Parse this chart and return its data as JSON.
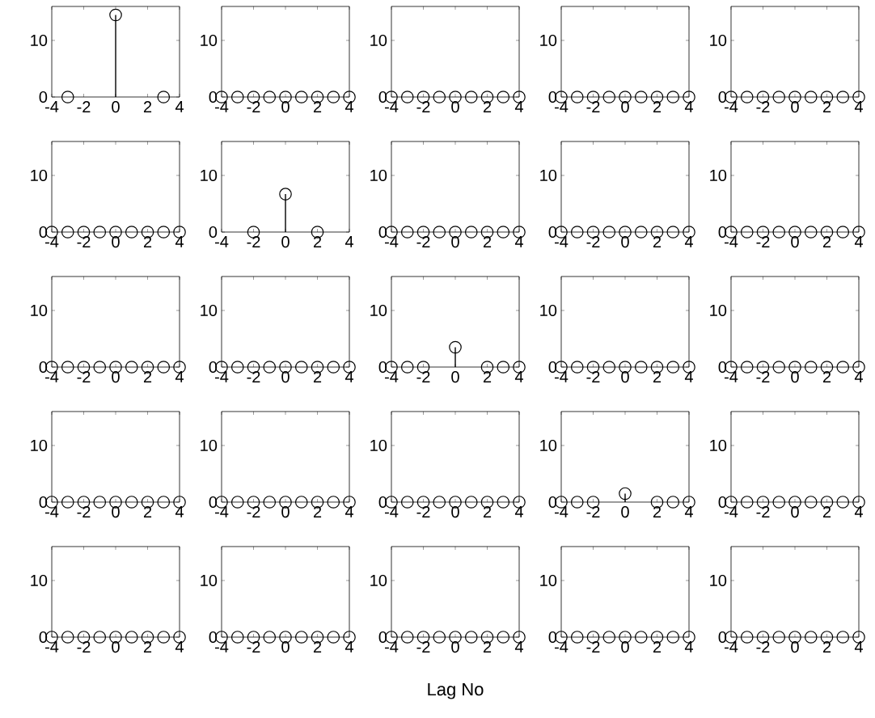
{
  "chart_data": [
    {
      "type": "lollipop",
      "x": [
        -3,
        0,
        3
      ],
      "values": [
        0,
        14.5,
        0
      ],
      "color": "#000000",
      "marker": "circle",
      "xlim": [
        -4,
        4
      ],
      "ylim": [
        0,
        16
      ],
      "xticks": [
        -4,
        -2,
        0,
        2,
        4
      ],
      "yticks": [
        0,
        10
      ]
    },
    {
      "type": "lollipop",
      "x": [
        -4,
        -3,
        -2,
        -1,
        0,
        1,
        2,
        3,
        4
      ],
      "values": [
        0,
        0,
        0,
        0,
        0,
        0,
        0,
        0,
        0
      ],
      "color": "#000000",
      "marker": "circle",
      "xlim": [
        -4,
        4
      ],
      "ylim": [
        0,
        16
      ],
      "xticks": [
        -4,
        -2,
        0,
        2,
        4
      ],
      "yticks": [
        0,
        10
      ]
    },
    {
      "type": "lollipop",
      "x": [
        -4,
        -3,
        -2,
        -1,
        0,
        1,
        2,
        3,
        4
      ],
      "values": [
        0,
        0,
        0,
        0,
        0,
        0,
        0,
        0,
        0
      ],
      "color": "#000000",
      "marker": "circle",
      "xlim": [
        -4,
        4
      ],
      "ylim": [
        0,
        16
      ],
      "xticks": [
        -4,
        -2,
        0,
        2,
        4
      ],
      "yticks": [
        0,
        10
      ]
    },
    {
      "type": "lollipop",
      "x": [
        -4,
        -3,
        -2,
        -1,
        0,
        1,
        2,
        3,
        4
      ],
      "values": [
        0,
        0,
        0,
        0,
        0,
        0,
        0,
        0,
        0
      ],
      "color": "#000000",
      "marker": "circle",
      "xlim": [
        -4,
        4
      ],
      "ylim": [
        0,
        16
      ],
      "xticks": [
        -4,
        -2,
        0,
        2,
        4
      ],
      "yticks": [
        0,
        10
      ]
    },
    {
      "type": "lollipop",
      "x": [
        -4,
        -3,
        -2,
        -1,
        0,
        1,
        2,
        3,
        4
      ],
      "values": [
        0,
        0,
        0,
        0,
        0,
        0,
        0,
        0,
        0
      ],
      "color": "#000000",
      "marker": "circle",
      "xlim": [
        -4,
        4
      ],
      "ylim": [
        0,
        16
      ],
      "xticks": [
        -4,
        -2,
        0,
        2,
        4
      ],
      "yticks": [
        0,
        10
      ]
    },
    {
      "type": "lollipop",
      "x": [
        -4,
        -3,
        -2,
        -1,
        0,
        1,
        2,
        3,
        4
      ],
      "values": [
        0,
        0,
        0,
        0,
        0,
        0,
        0,
        0,
        0
      ],
      "color": "#000000",
      "marker": "circle",
      "xlim": [
        -4,
        4
      ],
      "ylim": [
        0,
        16
      ],
      "xticks": [
        -4,
        -2,
        0,
        2,
        4
      ],
      "yticks": [
        0,
        10
      ]
    },
    {
      "type": "lollipop",
      "x": [
        -2,
        0,
        2
      ],
      "values": [
        0,
        6.7,
        0
      ],
      "color": "#000000",
      "marker": "circle",
      "xlim": [
        -4,
        4
      ],
      "ylim": [
        0,
        16
      ],
      "xticks": [
        -4,
        -2,
        0,
        2,
        4
      ],
      "yticks": [
        0,
        10
      ]
    },
    {
      "type": "lollipop",
      "x": [
        -4,
        -3,
        -2,
        -1,
        0,
        1,
        2,
        3,
        4
      ],
      "values": [
        0,
        0,
        0,
        0,
        0,
        0,
        0,
        0,
        0
      ],
      "color": "#000000",
      "marker": "circle",
      "xlim": [
        -4,
        4
      ],
      "ylim": [
        0,
        16
      ],
      "xticks": [
        -4,
        -2,
        0,
        2,
        4
      ],
      "yticks": [
        0,
        10
      ]
    },
    {
      "type": "lollipop",
      "x": [
        -4,
        -3,
        -2,
        -1,
        0,
        1,
        2,
        3,
        4
      ],
      "values": [
        0,
        0,
        0,
        0,
        0,
        0,
        0,
        0,
        0
      ],
      "color": "#000000",
      "marker": "circle",
      "xlim": [
        -4,
        4
      ],
      "ylim": [
        0,
        16
      ],
      "xticks": [
        -4,
        -2,
        0,
        2,
        4
      ],
      "yticks": [
        0,
        10
      ]
    },
    {
      "type": "lollipop",
      "x": [
        -4,
        -3,
        -2,
        -1,
        0,
        1,
        2,
        3,
        4
      ],
      "values": [
        0,
        0,
        0,
        0,
        0,
        0,
        0,
        0,
        0
      ],
      "color": "#000000",
      "marker": "circle",
      "xlim": [
        -4,
        4
      ],
      "ylim": [
        0,
        16
      ],
      "xticks": [
        -4,
        -2,
        0,
        2,
        4
      ],
      "yticks": [
        0,
        10
      ]
    },
    {
      "type": "lollipop",
      "x": [
        -4,
        -3,
        -2,
        -1,
        0,
        1,
        2,
        3,
        4
      ],
      "values": [
        0,
        0,
        0,
        0,
        0,
        0,
        0,
        0,
        0
      ],
      "color": "#000000",
      "marker": "circle",
      "xlim": [
        -4,
        4
      ],
      "ylim": [
        0,
        16
      ],
      "xticks": [
        -4,
        -2,
        0,
        2,
        4
      ],
      "yticks": [
        0,
        10
      ]
    },
    {
      "type": "lollipop",
      "x": [
        -4,
        -3,
        -2,
        -1,
        0,
        1,
        2,
        3,
        4
      ],
      "values": [
        0,
        0,
        0,
        0,
        0,
        0,
        0,
        0,
        0
      ],
      "color": "#000000",
      "marker": "circle",
      "xlim": [
        -4,
        4
      ],
      "ylim": [
        0,
        16
      ],
      "xticks": [
        -4,
        -2,
        0,
        2,
        4
      ],
      "yticks": [
        0,
        10
      ]
    },
    {
      "type": "lollipop",
      "x": [
        -4,
        -3,
        -2,
        0,
        2,
        3,
        4
      ],
      "values": [
        0,
        0,
        0,
        3.5,
        0,
        0,
        0
      ],
      "color": "#000000",
      "marker": "circle",
      "xlim": [
        -4,
        4
      ],
      "ylim": [
        0,
        16
      ],
      "xticks": [
        -4,
        -2,
        0,
        2,
        4
      ],
      "yticks": [
        0,
        10
      ]
    },
    {
      "type": "lollipop",
      "x": [
        -4,
        -3,
        -2,
        -1,
        0,
        1,
        2,
        3,
        4
      ],
      "values": [
        0,
        0,
        0,
        0,
        0,
        0,
        0,
        0,
        0
      ],
      "color": "#000000",
      "marker": "circle",
      "xlim": [
        -4,
        4
      ],
      "ylim": [
        0,
        16
      ],
      "xticks": [
        -4,
        -2,
        0,
        2,
        4
      ],
      "yticks": [
        0,
        10
      ]
    },
    {
      "type": "lollipop",
      "x": [
        -4,
        -3,
        -2,
        -1,
        0,
        1,
        2,
        3,
        4
      ],
      "values": [
        0,
        0,
        0,
        0,
        0,
        0,
        0,
        0,
        0
      ],
      "color": "#000000",
      "marker": "circle",
      "xlim": [
        -4,
        4
      ],
      "ylim": [
        0,
        16
      ],
      "xticks": [
        -4,
        -2,
        0,
        2,
        4
      ],
      "yticks": [
        0,
        10
      ]
    },
    {
      "type": "lollipop",
      "x": [
        -4,
        -3,
        -2,
        -1,
        0,
        1,
        2,
        3,
        4
      ],
      "values": [
        0,
        0,
        0,
        0,
        0,
        0,
        0,
        0,
        0
      ],
      "color": "#000000",
      "marker": "circle",
      "xlim": [
        -4,
        4
      ],
      "ylim": [
        0,
        16
      ],
      "xticks": [
        -4,
        -2,
        0,
        2,
        4
      ],
      "yticks": [
        0,
        10
      ]
    },
    {
      "type": "lollipop",
      "x": [
        -4,
        -3,
        -2,
        -1,
        0,
        1,
        2,
        3,
        4
      ],
      "values": [
        0,
        0,
        0,
        0,
        0,
        0,
        0,
        0,
        0
      ],
      "color": "#000000",
      "marker": "circle",
      "xlim": [
        -4,
        4
      ],
      "ylim": [
        0,
        16
      ],
      "xticks": [
        -4,
        -2,
        0,
        2,
        4
      ],
      "yticks": [
        0,
        10
      ]
    },
    {
      "type": "lollipop",
      "x": [
        -4,
        -3,
        -2,
        -1,
        0,
        1,
        2,
        3,
        4
      ],
      "values": [
        0,
        0,
        0,
        0,
        0,
        0,
        0,
        0,
        0
      ],
      "color": "#000000",
      "marker": "circle",
      "xlim": [
        -4,
        4
      ],
      "ylim": [
        0,
        16
      ],
      "xticks": [
        -4,
        -2,
        0,
        2,
        4
      ],
      "yticks": [
        0,
        10
      ]
    },
    {
      "type": "lollipop",
      "x": [
        -4,
        -3,
        -2,
        0,
        2,
        3,
        4
      ],
      "values": [
        0,
        0,
        0,
        1.5,
        0,
        0,
        0
      ],
      "color": "#000000",
      "marker": "circle",
      "xlim": [
        -4,
        4
      ],
      "ylim": [
        0,
        16
      ],
      "xticks": [
        -4,
        -2,
        0,
        2,
        4
      ],
      "yticks": [
        0,
        10
      ]
    },
    {
      "type": "lollipop",
      "x": [
        -4,
        -3,
        -2,
        -1,
        0,
        1,
        2,
        3,
        4
      ],
      "values": [
        0,
        0,
        0,
        0,
        0,
        0,
        0,
        0,
        0
      ],
      "color": "#000000",
      "marker": "circle",
      "xlim": [
        -4,
        4
      ],
      "ylim": [
        0,
        16
      ],
      "xticks": [
        -4,
        -2,
        0,
        2,
        4
      ],
      "yticks": [
        0,
        10
      ]
    },
    {
      "type": "lollipop",
      "x": [
        -4,
        -3,
        -2,
        -1,
        0,
        1,
        2,
        3,
        4
      ],
      "values": [
        0,
        0,
        0,
        0,
        0,
        0,
        0,
        0,
        0
      ],
      "color": "#000000",
      "marker": "circle",
      "xlim": [
        -4,
        4
      ],
      "ylim": [
        0,
        16
      ],
      "xticks": [
        -4,
        -2,
        0,
        2,
        4
      ],
      "yticks": [
        0,
        10
      ]
    },
    {
      "type": "lollipop",
      "x": [
        -4,
        -3,
        -2,
        -1,
        0,
        1,
        2,
        3,
        4
      ],
      "values": [
        0,
        0,
        0,
        0,
        0,
        0,
        0,
        0,
        0
      ],
      "color": "#000000",
      "marker": "circle",
      "xlim": [
        -4,
        4
      ],
      "ylim": [
        0,
        16
      ],
      "xticks": [
        -4,
        -2,
        0,
        2,
        4
      ],
      "yticks": [
        0,
        10
      ]
    },
    {
      "type": "lollipop",
      "x": [
        -4,
        -3,
        -2,
        -1,
        0,
        1,
        2,
        3,
        4
      ],
      "values": [
        0,
        0,
        0,
        0,
        0,
        0,
        0,
        0,
        0
      ],
      "color": "#000000",
      "marker": "circle",
      "xlim": [
        -4,
        4
      ],
      "ylim": [
        0,
        16
      ],
      "xticks": [
        -4,
        -2,
        0,
        2,
        4
      ],
      "yticks": [
        0,
        10
      ],
      "xlabel": "Lag No"
    },
    {
      "type": "lollipop",
      "x": [
        -4,
        -3,
        -2,
        -1,
        0,
        1,
        2,
        3,
        4
      ],
      "values": [
        0,
        0,
        0,
        0,
        0,
        0,
        0,
        0,
        0
      ],
      "color": "#000000",
      "marker": "circle",
      "xlim": [
        -4,
        4
      ],
      "ylim": [
        0,
        16
      ],
      "xticks": [
        -4,
        -2,
        0,
        2,
        4
      ],
      "yticks": [
        0,
        10
      ]
    },
    {
      "type": "lollipop",
      "x": [
        -4,
        -3,
        -2,
        -1,
        0,
        1,
        2,
        3,
        4
      ],
      "values": [
        0,
        0,
        0,
        0,
        0,
        0,
        0,
        0,
        0
      ],
      "color": "#000000",
      "marker": "circle",
      "xlim": [
        -4,
        4
      ],
      "ylim": [
        0,
        16
      ],
      "xticks": [
        -4,
        -2,
        0,
        2,
        4
      ],
      "yticks": [
        0,
        10
      ]
    }
  ]
}
